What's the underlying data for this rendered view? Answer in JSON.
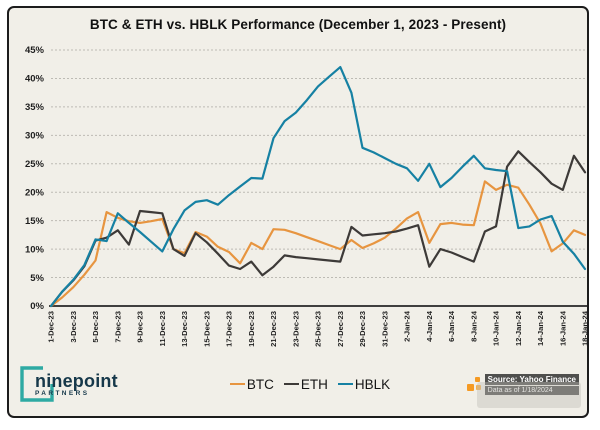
{
  "frame": {
    "title": "BTC & ETH vs. HBLK Performance (December 1, 2023 - Present)"
  },
  "chart_data": {
    "type": "line",
    "title": "BTC & ETH vs. HBLK Performance (December 1, 2023 - Present)",
    "xlabel": "",
    "ylabel": "",
    "ylim": [
      0,
      45
    ],
    "grid": "horizontal-dashed",
    "legend_position": "bottom-center",
    "y_tick_labels": [
      "0%",
      "5%",
      "10%",
      "15%",
      "20%",
      "25%",
      "30%",
      "35%",
      "40%",
      "45%"
    ],
    "x_tick_labels": [
      "1-Dec-23",
      "3-Dec-23",
      "5-Dec-23",
      "7-Dec-23",
      "9-Dec-23",
      "11-Dec-23",
      "13-Dec-23",
      "15-Dec-23",
      "17-Dec-23",
      "19-Dec-23",
      "21-Dec-23",
      "23-Dec-23",
      "25-Dec-23",
      "27-Dec-23",
      "29-Dec-23",
      "31-Dec-23",
      "2-Jan-24",
      "4-Jan-24",
      "6-Jan-24",
      "8-Jan-24",
      "10-Jan-24",
      "12-Jan-24",
      "14-Jan-24",
      "16-Jan-24",
      "18-Jan-24"
    ],
    "x_is_daily": true,
    "series": [
      {
        "name": "BTC",
        "color": "#E79540",
        "values": [
          0,
          1.5,
          3.3,
          5.5,
          8.0,
          16.5,
          15.5,
          14.9,
          14.6,
          14.9,
          15.3,
          10.0,
          9.3,
          13.0,
          12.2,
          10.4,
          9.5,
          7.5,
          11.1,
          10.0,
          13.5,
          13.4,
          12.8,
          12.1,
          11.4,
          10.7,
          10.0,
          11.6,
          10.2,
          11.0,
          12.0,
          13.6,
          15.4,
          16.5,
          11.1,
          14.4,
          14.6,
          14.3,
          14.2,
          21.9,
          20.4,
          21.3,
          20.8,
          17.8,
          14.5,
          9.6,
          11.0,
          13.3,
          12.5
        ]
      },
      {
        "name": "ETH",
        "color": "#3D3A38",
        "values": [
          0,
          2.5,
          4.5,
          7.0,
          11.5,
          12.0,
          13.3,
          10.8,
          16.7,
          16.5,
          16.3,
          10.0,
          8.8,
          12.8,
          11.2,
          9.2,
          7.1,
          6.5,
          7.8,
          5.4,
          6.9,
          8.9,
          8.6,
          8.4,
          8.2,
          8.0,
          7.8,
          13.9,
          12.4,
          12.6,
          12.8,
          13.1,
          13.6,
          14.2,
          6.9,
          10.0,
          9.4,
          8.6,
          7.8,
          13.1,
          14.0,
          24.5,
          27.2,
          25.3,
          23.5,
          21.5,
          20.4,
          26.4,
          23.5
        ]
      },
      {
        "name": "HBLK",
        "color": "#1681A3",
        "values": [
          0,
          2.5,
          4.6,
          7.2,
          11.7,
          11.4,
          16.3,
          14.6,
          13.0,
          11.3,
          9.6,
          13.5,
          16.8,
          18.3,
          18.6,
          17.8,
          19.5,
          21.0,
          22.5,
          22.4,
          29.5,
          32.5,
          34.0,
          36.2,
          38.6,
          40.3,
          42.0,
          37.5,
          27.8,
          27.0,
          26.0,
          25.0,
          24.2,
          22.0,
          25.0,
          20.9,
          22.5,
          24.5,
          26.4,
          24.2,
          23.9,
          23.7,
          13.7,
          14.0,
          15.2,
          15.8,
          11.3,
          9.2,
          6.5
        ]
      }
    ]
  },
  "footer": {
    "logo": {
      "name": "ninepoint",
      "sub": "PARTNERS"
    },
    "source_line1": "Source: Yahoo Finance",
    "source_line2": "Data as of 1/18/2024"
  },
  "colors": {
    "frame_background": "#f1efe8",
    "frame_border": "#1c1c1c",
    "gridline": "#bdbbb4",
    "axis": "#262626",
    "btc": "#E79540",
    "eth": "#3D3A38",
    "hblk": "#1681A3",
    "logo_teal": "#2eaaa3",
    "logo_navy": "#16384a",
    "source_icon_orange": "#f59a23"
  }
}
